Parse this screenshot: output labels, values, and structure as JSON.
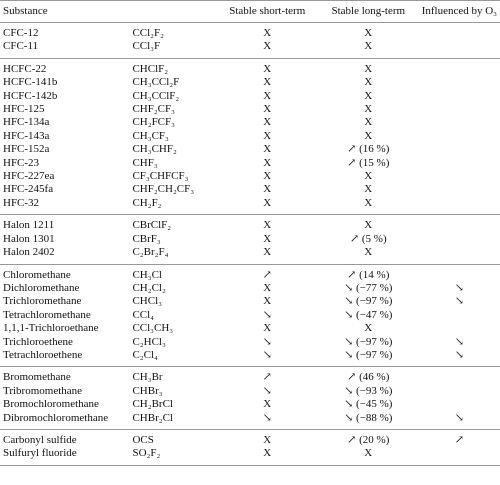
{
  "table": {
    "header": [
      "Substance",
      "",
      "Stable short-term",
      "Stable long-term",
      "Influenced by O₃"
    ],
    "groups": [
      {
        "rows": [
          [
            "CFC-12",
            "CCl₂F₂",
            "X",
            "X",
            null
          ],
          [
            "CFC-11",
            "CCl₃F",
            "X",
            "X",
            null
          ]
        ]
      },
      {
        "rows": [
          [
            "HCFC-22",
            "CHClF₂",
            "X",
            "X",
            null
          ],
          [
            "HCFC-141b",
            "CH₃CCl₂F",
            "X",
            "X",
            null
          ],
          [
            "HCFC-142b",
            "CH₃CClF₂",
            "X",
            "X",
            null
          ],
          [
            "HFC-125",
            "CHF₂CF₃",
            "X",
            "X",
            null
          ],
          [
            "HFC-134a",
            "CH₂FCF₃",
            "X",
            "X",
            null
          ],
          [
            "HFC-143a",
            "CH₃CF₃",
            "X",
            "X",
            null
          ],
          [
            "HFC-152a",
            "CH₃CHF₂",
            "X",
            "↗ (16 %)",
            null
          ],
          [
            "HFC-23",
            "CHF₃",
            "X",
            "↗ (15 %)",
            null
          ],
          [
            "HFC-227ea",
            "CF₃CHFCF₃",
            "X",
            "X",
            null
          ],
          [
            "HFC-245fa",
            "CHF₂CH₂CF₃",
            "X",
            "X",
            null
          ],
          [
            "HFC-32",
            "CH₂F₂",
            "X",
            "X",
            null
          ]
        ]
      },
      {
        "rows": [
          [
            "Halon 1211",
            "CBrClF₂",
            "X",
            "X",
            null
          ],
          [
            "Halon 1301",
            "CBrF₃",
            "X",
            "↗ (5 %)",
            null
          ],
          [
            "Halon 2402",
            "C₂Br₂F₄",
            "X",
            "X",
            null
          ]
        ]
      },
      {
        "rows": [
          [
            "Chloromethane",
            "CH₃Cl",
            "↗",
            "↗ (14 %)",
            null
          ],
          [
            "Dichloromethane",
            "CH₂Cl₂",
            "X",
            "↘ (−77 %)",
            "↘"
          ],
          [
            "Trichloromethane",
            "CHCl₃",
            "X",
            "↘ (−97 %)",
            "↘"
          ],
          [
            "Tetrachloromethane",
            "CCl₄",
            "↘",
            "↘ (−47 %)",
            null
          ],
          [
            "1,1,1-Trichloroethane",
            "CCl₃CH₃",
            "X",
            "X",
            null
          ],
          [
            "Trichloroethene",
            "C₂HCl₃",
            "↘",
            "↘ (−97 %)",
            "↘"
          ],
          [
            "Tetrachloroethene",
            "C₂Cl₄",
            "↘",
            "↘ (−97 %)",
            "↘"
          ]
        ]
      },
      {
        "rows": [
          [
            "Bromomethane",
            "CH₃Br",
            "↗",
            "↗ (46 %)",
            null
          ],
          [
            "Tribromomethane",
            "CHBr₃",
            "↘",
            "↘ (−93 %)",
            null
          ],
          [
            "Bromochloromethane",
            "CH₂BrCl",
            "X",
            "↘ (−45 %)",
            null
          ],
          [
            "Dibromochloromethane",
            "CHBr₂Cl",
            "↘",
            "↘ (−88 %)",
            "↘"
          ]
        ]
      },
      {
        "rows": [
          [
            "Carbonyl sulfide",
            "OCS",
            "X",
            "↗ (20 %)",
            "↗"
          ],
          [
            "Sulfuryl fluoride",
            "SO₂F₂",
            "X",
            "X",
            null
          ]
        ]
      }
    ]
  }
}
